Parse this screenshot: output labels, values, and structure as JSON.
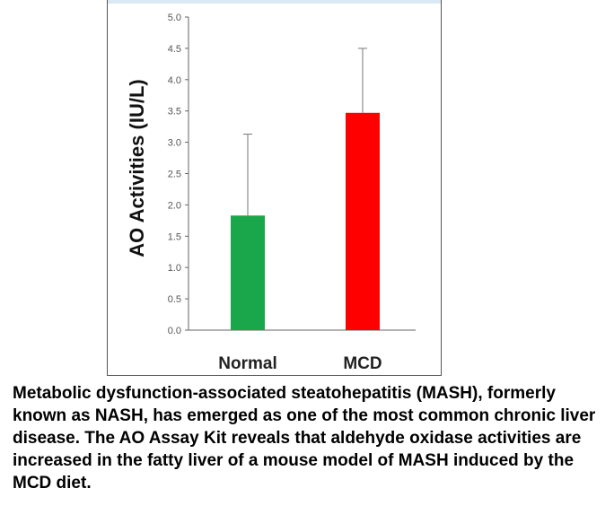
{
  "chart_data": {
    "type": "bar",
    "categories": [
      "Normal",
      "MCD"
    ],
    "series": [
      {
        "values": [
          1.83,
          3.47
        ],
        "errors": [
          1.3,
          1.03
        ],
        "colors": [
          "#1aa64a",
          "#ff0000"
        ]
      }
    ],
    "ylabel": "AO Activities (IU/L)",
    "ylim": [
      0.0,
      5.0
    ],
    "yticks": [
      "0.0",
      "0.5",
      "1.0",
      "1.5",
      "2.0",
      "2.5",
      "3.0",
      "3.5",
      "4.0",
      "4.5",
      "5.0"
    ],
    "grid": false,
    "legend": "none"
  },
  "caption": "Metabolic dysfunction-associated steatohepatitis (MASH), formerly known as NASH, has emerged as one of the most common chronic liver disease. The AO Assay Kit reveals that aldehyde oxidase activities are increased in the fatty liver of a mouse model of MASH induced by the MCD diet."
}
